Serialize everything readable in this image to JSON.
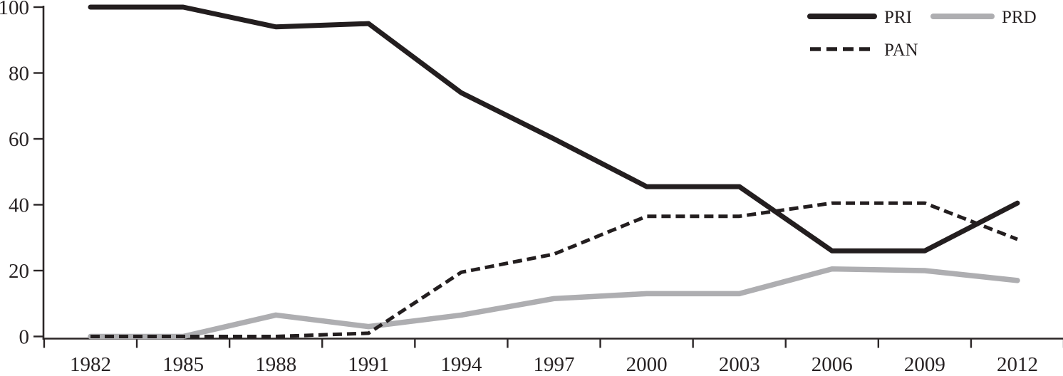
{
  "figure": {
    "background_color": "#ffffff",
    "text_color": "#272223",
    "axis_color": "#2b2627"
  },
  "chart_data": {
    "type": "line",
    "title": "",
    "xlabel": "",
    "ylabel": "",
    "categories": [
      "1982",
      "1985",
      "1988",
      "1991",
      "1994",
      "1997",
      "2000",
      "2003",
      "2006",
      "2009",
      "2012"
    ],
    "series": [
      {
        "name": "PRI",
        "color": "#231e1f",
        "line_style": "solid",
        "values": [
          100,
          100,
          94,
          95,
          74,
          60,
          45.5,
          45.5,
          26,
          26,
          40.5
        ]
      },
      {
        "name": "PRD",
        "color": "#aeaeb1",
        "line_style": "solid",
        "values": [
          0,
          0,
          6.5,
          3,
          6.5,
          11.5,
          13,
          13,
          20.5,
          20,
          17
        ]
      },
      {
        "name": "PAN",
        "color": "#231e1f",
        "line_style": "dashed",
        "values": [
          0,
          0,
          0,
          1,
          19.5,
          25,
          36.5,
          36.5,
          40.5,
          40.5,
          29.5
        ]
      }
    ],
    "ylim": [
      0,
      100
    ],
    "yticks": [
      0,
      20,
      40,
      60,
      80,
      100
    ],
    "grid": false,
    "legend_position": "top-right",
    "legend_entries": [
      "PRI",
      "PRD",
      "PAN"
    ]
  }
}
